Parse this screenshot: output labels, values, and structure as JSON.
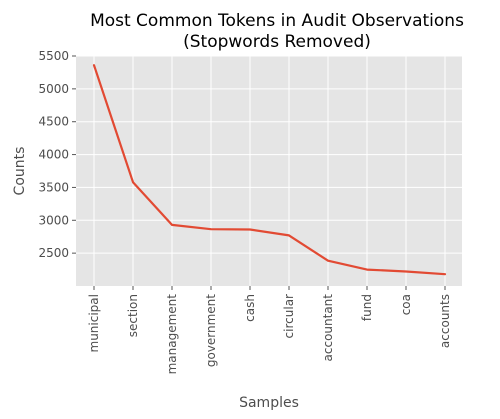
{
  "chart_data": {
    "type": "line",
    "title_lines": [
      "Most Common Tokens in Audit Observations",
      "(Stopwords Removed)"
    ],
    "xlabel": "Samples",
    "ylabel": "Counts",
    "categories": [
      "municipal",
      "section",
      "management",
      "government",
      "cash",
      "circular",
      "accountant",
      "fund",
      "coa",
      "accounts"
    ],
    "values": [
      5360,
      3580,
      2930,
      2865,
      2860,
      2770,
      2385,
      2250,
      2220,
      2180
    ],
    "yticks": [
      2500,
      3000,
      3500,
      4000,
      4500,
      5000,
      5500
    ],
    "ylim": [
      2000,
      5500
    ],
    "grid": true,
    "line_color": "#e24a33",
    "plot_background": "#e5e5e5",
    "grid_color": "#ffffff"
  }
}
